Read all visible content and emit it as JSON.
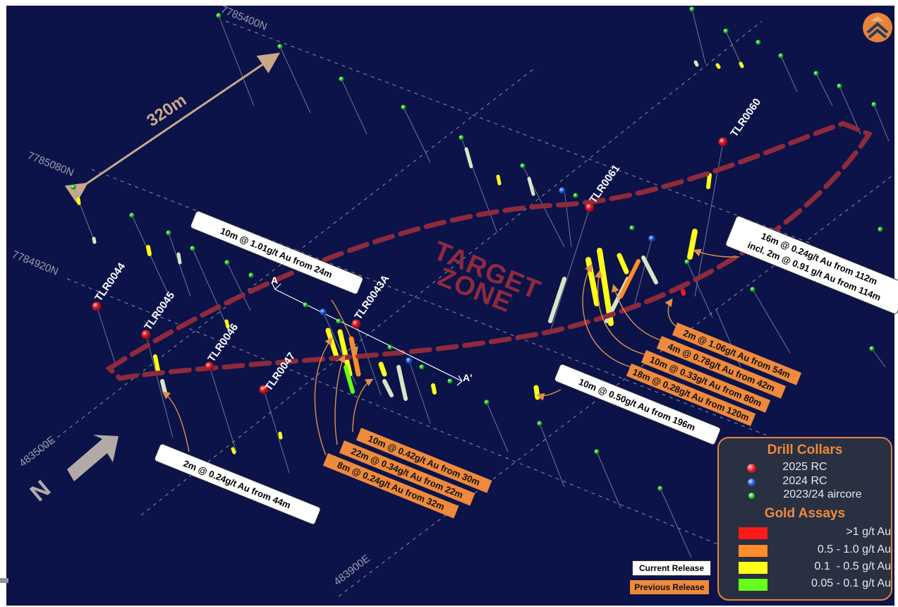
{
  "colors": {
    "background": "#0b1349",
    "target_zone": "#8e2a3c",
    "grid": "#b7bccb",
    "callout_arrow": "#e0904c",
    "collar_2025": "#e5202e",
    "collar_2024": "#2a63e6",
    "collar_aircore": "#2ed42e",
    "assay_gt1": "#ff1a1a",
    "assay_05_10": "#ff8c2a",
    "assay_01_05": "#ffff1a",
    "assay_005_01": "#66ff1a",
    "assay_low": "#d8e6c8"
  },
  "grid_labels": [
    "7785400N",
    "7785080N",
    "7784920N",
    "483500E",
    "483900E"
  ],
  "scale": {
    "label": "320m"
  },
  "target_zone": {
    "line1": "TARGET",
    "line2": "ZONE"
  },
  "section": {
    "start": "A",
    "end": "A'"
  },
  "holes": [
    "TLR0044",
    "TLR0045",
    "TLR0046",
    "TLR0047",
    "TLR0043A",
    "TLR0061",
    "TLR0060"
  ],
  "callouts": {
    "current": [
      "10m @ 1.01g/t Au from 24m",
      "16m @ 0.24g/t Au from 112m",
      "incl. 2m @ 0.91 g/t Au from 114m",
      "10m @ 0.50g/t Au from 196m",
      "2m @ 0.24g/t Au from 44m"
    ],
    "previous_a": [
      "10m @ 0.42g/t Au from 30m",
      "22m @ 0.34g/t Au from 22m",
      "8m @ 0.24g/t Au from 32m"
    ],
    "previous_b": [
      "2m @ 1.06g/t Au from 54m",
      "4m @ 0.78g/t Au from 42m",
      "10m @ 0.33g/t Au from 80m",
      "18m @ 0.28g/t Au from 120m"
    ]
  },
  "north_arrow": {
    "label": "N"
  },
  "legend": {
    "collars_title": "Drill Collars",
    "collars": [
      {
        "label": "2025 RC",
        "color": "#e5202e"
      },
      {
        "label": "2024 RC",
        "color": "#2a63e6"
      },
      {
        "label": "2023/24 aircore",
        "color": "#2ed42e"
      }
    ],
    "assays_title": "Gold Assays",
    "assays": [
      {
        "label": ">1 g/t Au",
        "color": "#ff1a1a"
      },
      {
        "label": "0.5 - 1.0 g/t Au",
        "color": "#ff8c2a"
      },
      {
        "label": "0.1  - 0.5 g/t Au",
        "color": "#ffff1a"
      },
      {
        "label": "0.05 - 0.1 g/t Au",
        "color": "#66ff1a"
      }
    ]
  },
  "release_key": {
    "current": "Current Release",
    "previous": "Previous Release"
  }
}
